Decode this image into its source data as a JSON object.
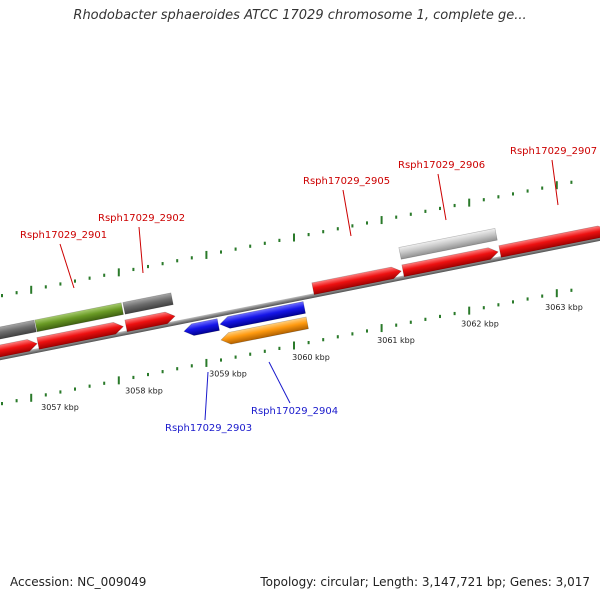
{
  "title": "Rhodobacter sphaeroides ATCC 17029 chromosome 1, complete ge...",
  "footer": {
    "accession": "Accession: NC_009049",
    "topology": "Topology: circular; Length: 3,147,721 bp; Genes: 3,017"
  },
  "colors": {
    "red": "#ee1111",
    "blue": "#1515e8",
    "orange": "#ff9a10",
    "olive": "#6a9a25",
    "dark_gray": "#6e6e6e",
    "light_gray": "#c8c8c8",
    "ticks": "#2a7a2a",
    "label_red": "#cc0000",
    "label_blue": "#1a1acc"
  },
  "scale_labels": [
    "3057 kbp",
    "3058 kbp",
    "3059 kbp",
    "3060 kbp",
    "3061 kbp",
    "3062 kbp",
    "3063 kbp"
  ],
  "gene_labels": [
    {
      "name": "Rsph17029_2901",
      "strand": "forward"
    },
    {
      "name": "Rsph17029_2902",
      "strand": "forward"
    },
    {
      "name": "Rsph17029_2905",
      "strand": "forward"
    },
    {
      "name": "Rsph17029_2906",
      "strand": "forward"
    },
    {
      "name": "Rsph17029_2907",
      "strand": "forward"
    },
    {
      "name": "Rsph17029_2903",
      "strand": "reverse"
    },
    {
      "name": "Rsph17029_2904",
      "strand": "reverse"
    }
  ]
}
